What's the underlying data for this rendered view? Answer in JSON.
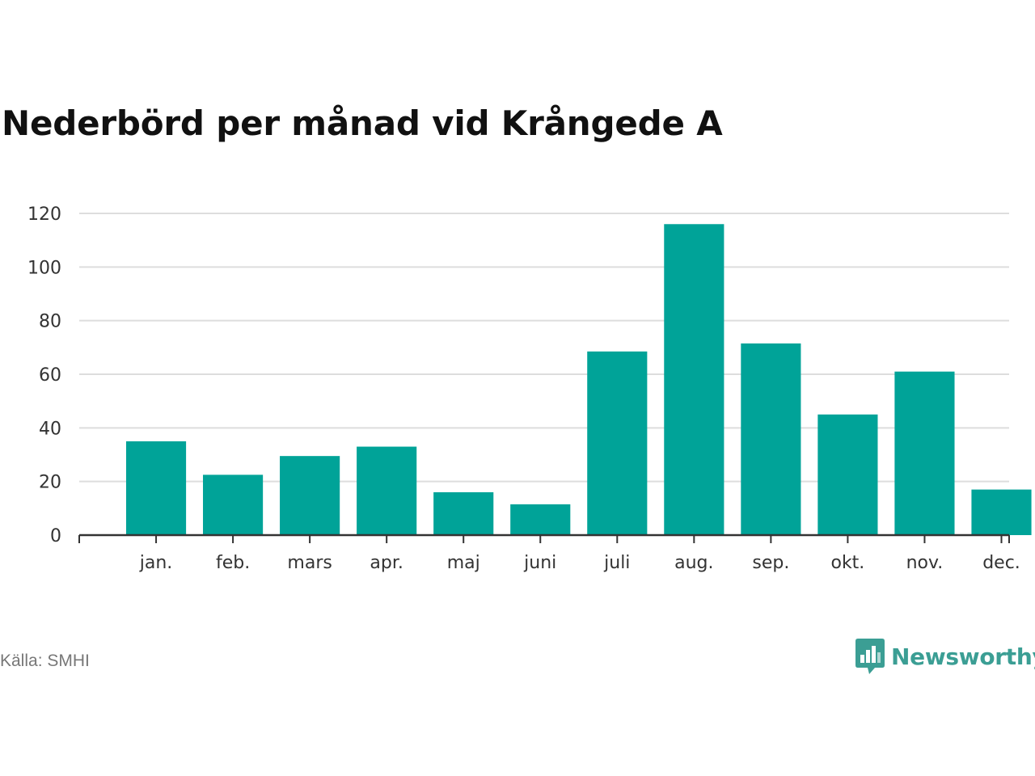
{
  "chart_data": {
    "type": "bar",
    "title": "Nederbörd per månad vid Krångede A",
    "categories": [
      "jan.",
      "feb.",
      "mars",
      "apr.",
      "maj",
      "juni",
      "juli",
      "aug.",
      "sep.",
      "okt.",
      "nov.",
      "dec."
    ],
    "values": [
      35,
      22.5,
      29.5,
      33,
      16,
      11.5,
      68.5,
      116,
      71.5,
      45,
      61,
      17
    ],
    "ylim": [
      0,
      120
    ],
    "yticks": [
      0,
      20,
      40,
      60,
      80,
      100,
      120
    ],
    "grid": true,
    "bar_color": "#00a398",
    "xlabel": "",
    "ylabel": ""
  },
  "source": "Källa: SMHI",
  "logo": {
    "text": "Newsworthy",
    "icon": "bar-chart-speech-bubble-icon",
    "color": "#3b9e94"
  }
}
